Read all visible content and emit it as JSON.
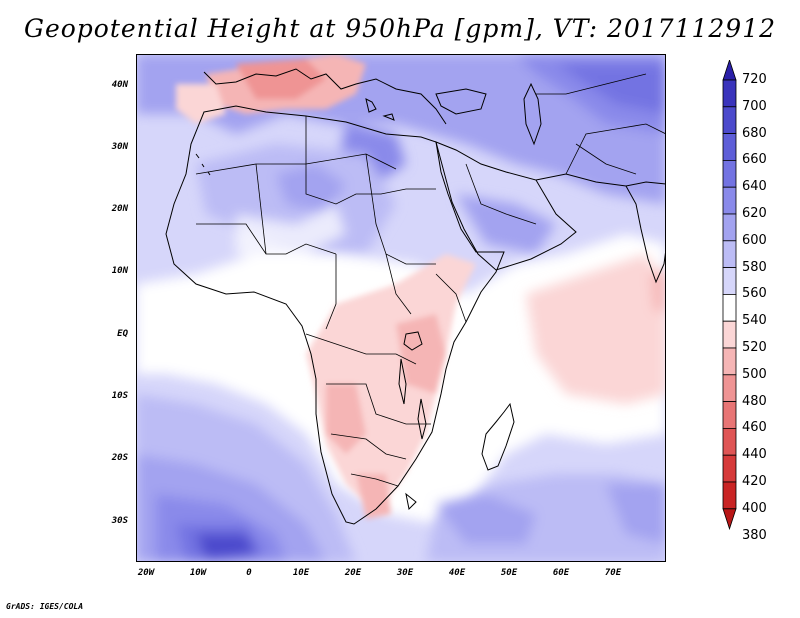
{
  "title": "Geopotential Height at 950hPa [gpm], VT: 2017112912",
  "credit": "GrADS: IGES/COLA",
  "map": {
    "variable": "Geopotential Height",
    "level": "950hPa",
    "units": "gpm",
    "valid_time": "2017112912",
    "lat_labels": [
      "40N",
      "30N",
      "20N",
      "10N",
      "EQ",
      "10S",
      "20S",
      "30S"
    ],
    "lat_values": [
      40,
      30,
      20,
      10,
      0,
      -10,
      -20,
      -30
    ],
    "lon_labels": [
      "20W",
      "10W",
      "0",
      "10E",
      "20E",
      "30E",
      "40E",
      "50E",
      "60E",
      "70E"
    ],
    "lon_values": [
      -20,
      -10,
      0,
      10,
      20,
      30,
      40,
      50,
      60,
      70
    ]
  },
  "colorbar": {
    "levels": [
      "720",
      "700",
      "680",
      "660",
      "640",
      "620",
      "600",
      "580",
      "560",
      "540",
      "520",
      "500",
      "480",
      "460",
      "440",
      "420",
      "400",
      "380"
    ],
    "colors": [
      "#2a1fa8",
      "#3a34bc",
      "#4c4acc",
      "#5e5ed8",
      "#7373e2",
      "#8a8aea",
      "#a3a3f0",
      "#bcbcf5",
      "#d6d6fa",
      "#ffffff",
      "#fbd6d6",
      "#f5b5b5",
      "#ef9494",
      "#e87575",
      "#df5555",
      "#d63a3a",
      "#c92424",
      "#b81616"
    ]
  },
  "field_colors": {
    "ocean_background": "#d6d6fa",
    "land_outline": "#000000"
  }
}
